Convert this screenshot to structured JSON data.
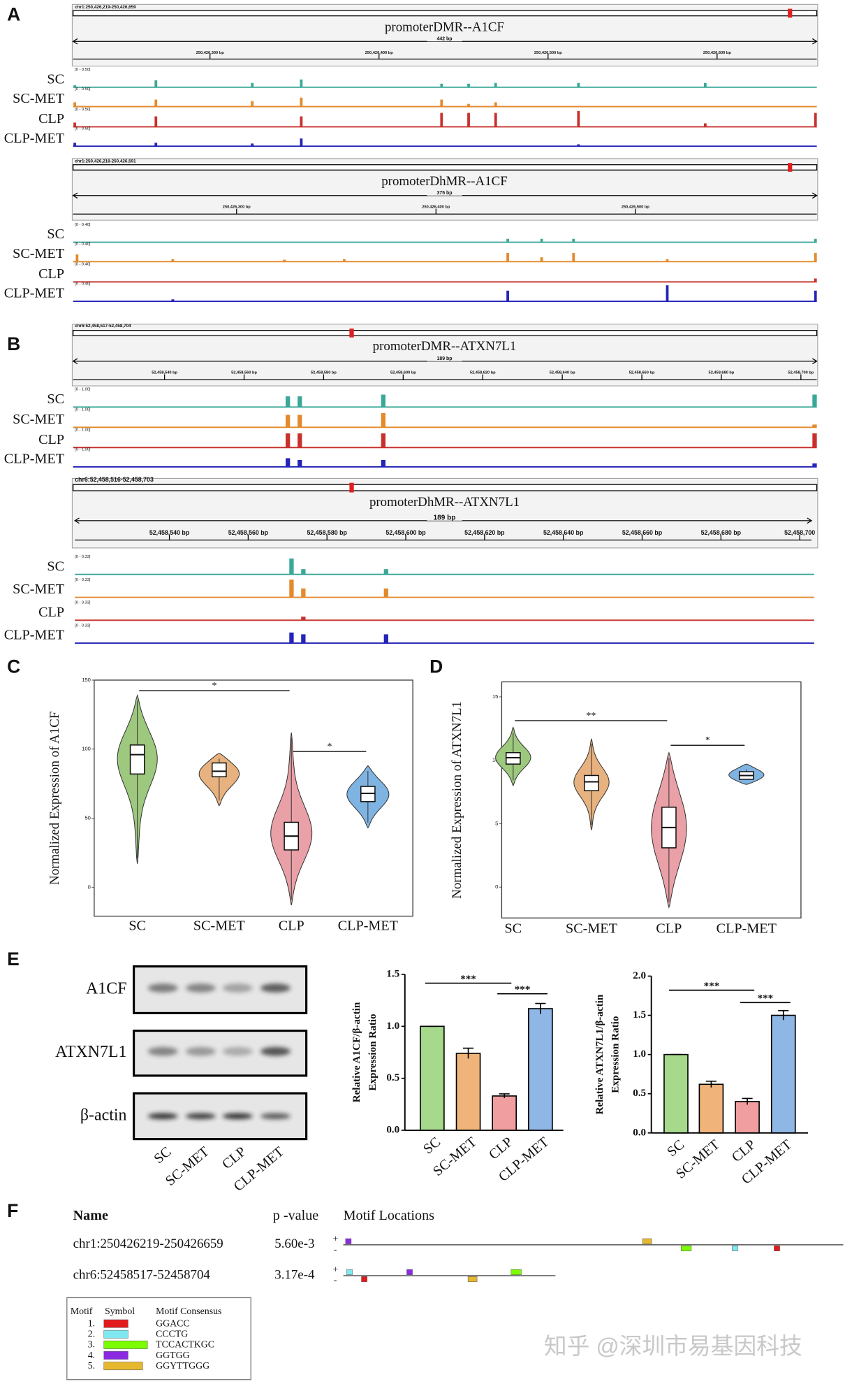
{
  "panel_labels": [
    "A",
    "B",
    "C",
    "D",
    "E",
    "F"
  ],
  "samples": [
    "SC",
    "SC-MET",
    "CLP",
    "CLP-MET"
  ],
  "sample_colors": [
    "#3aa898",
    "#e38a2c",
    "#c8302c",
    "#2424b8"
  ],
  "tracks": [
    {
      "locus": "chr1:250,426,219-250,426,659",
      "title": "promoterDMR--A1CF",
      "span": "442 bp",
      "xlim": [
        250426219,
        250426659
      ],
      "xticks": [
        {
          "value": 250426300,
          "label": "250,426,300 bp"
        },
        {
          "value": 250426400,
          "label": "250,426,400 bp"
        },
        {
          "value": 250426500,
          "label": "250,426,500 bp"
        },
        {
          "value": 250426600,
          "label": "250,426,600 bp"
        }
      ],
      "range": {
        "value": 0.5,
        "label": "[0 - 0.50]"
      },
      "peaks": [
        {
          "x": 250426220,
          "values": [
            0.05,
            0.11,
            0.11,
            0.09
          ]
        },
        {
          "x": 250426268,
          "values": [
            0.18,
            0.18,
            0.27,
            0.09
          ]
        },
        {
          "x": 250426325,
          "values": [
            0.11,
            0.14,
            0,
            0.07
          ]
        },
        {
          "x": 250426354,
          "values": [
            0.2,
            0.23,
            0.27,
            0.2
          ]
        },
        {
          "x": 250426437,
          "values": [
            0.09,
            0.18,
            0.36,
            0
          ]
        },
        {
          "x": 250426453,
          "values": [
            0.09,
            0.07,
            0.36,
            0
          ]
        },
        {
          "x": 250426469,
          "values": [
            0.11,
            0.11,
            0.36,
            0
          ]
        },
        {
          "x": 250426518,
          "values": [
            0.11,
            0,
            0.41,
            0.05
          ]
        },
        {
          "x": 250426593,
          "values": [
            0.11,
            0,
            0.09,
            0
          ]
        },
        {
          "x": 250426659,
          "values": [
            0,
            0,
            0.36,
            0
          ]
        }
      ]
    },
    {
      "locus": "chr1:250,426,218-250,426,591",
      "title": "promoterDhMR--A1CF",
      "span": "375 bp",
      "xlim": [
        250426218,
        250426591
      ],
      "xticks": [
        {
          "value": 250426300,
          "label": "250,426,300 bp"
        },
        {
          "value": 250426400,
          "label": "250,426,400 bp"
        },
        {
          "value": 250426500,
          "label": "250,426,500 bp"
        }
      ],
      "range": {
        "value": 0.4,
        "label": "[0 - 0.40]"
      },
      "peaks": [
        {
          "x": 250426220,
          "values": [
            0,
            0.15,
            0,
            0
          ]
        },
        {
          "x": 250426268,
          "values": [
            0,
            0.05,
            0,
            0.04
          ]
        },
        {
          "x": 250426324,
          "values": [
            0,
            0.04,
            0,
            0
          ]
        },
        {
          "x": 250426354,
          "values": [
            0,
            0.05,
            0,
            0
          ]
        },
        {
          "x": 250426436,
          "values": [
            0.07,
            0.18,
            0,
            0.22
          ]
        },
        {
          "x": 250426453,
          "values": [
            0.07,
            0.09,
            0,
            0
          ]
        },
        {
          "x": 250426469,
          "values": [
            0.07,
            0.18,
            0,
            0
          ]
        },
        {
          "x": 250426516,
          "values": [
            0,
            0.05,
            0,
            0.33
          ]
        },
        {
          "x": 250426591,
          "values": [
            0.07,
            0.18,
            0.07,
            0.22
          ]
        }
      ]
    },
    {
      "locus": "chr6:52,458,517-52,458,704",
      "title": "promoterDMR--ATXN7L1",
      "span": "189 bp",
      "xlim": [
        52458517,
        52458704
      ],
      "xticks": [
        {
          "value": 52458540,
          "label": "52,458,540 bp"
        },
        {
          "value": 52458560,
          "label": "52,458,560 bp"
        },
        {
          "value": 52458580,
          "label": "52,458,580 bp"
        },
        {
          "value": 52458600,
          "label": "52,458,600 bp"
        },
        {
          "value": 52458620,
          "label": "52,458,620 bp"
        },
        {
          "value": 52458640,
          "label": "52,458,640 bp"
        },
        {
          "value": 52458660,
          "label": "52,458,660 bp"
        },
        {
          "value": 52458680,
          "label": "52,458,680 bp"
        },
        {
          "value": 52458700,
          "label": "52,458,700 bp"
        }
      ],
      "range": {
        "value": 1,
        "label": "[0 - 1.00]"
      },
      "peaks": [
        {
          "x": 52458571,
          "values": [
            0.55,
            0.64,
            0.73,
            0.45
          ]
        },
        {
          "x": 52458574,
          "values": [
            0.55,
            0.64,
            0.73,
            0.36
          ]
        },
        {
          "x": 52458595,
          "values": [
            0.64,
            0.73,
            0.73,
            0.36
          ]
        },
        {
          "x": 52458704,
          "values": [
            0.64,
            0.14,
            0.73,
            0.18
          ]
        }
      ]
    },
    {
      "locus": "chr6:52,458,516-52,458,703",
      "title": "promoterDhMR--ATXN7L1",
      "span": "189 bp",
      "xlim": [
        52458516,
        52458703
      ],
      "xticks": [
        {
          "value": 52458540,
          "label": "52,458,540 bp"
        },
        {
          "value": 52458560,
          "label": "52,458,560 bp"
        },
        {
          "value": 52458580,
          "label": "52,458,580 bp"
        },
        {
          "value": 52458600,
          "label": "52,458,600 bp"
        },
        {
          "value": 52458620,
          "label": "52,458,620 bp"
        },
        {
          "value": 52458640,
          "label": "52,458,640 bp"
        },
        {
          "value": 52458660,
          "label": "52,458,660 bp"
        },
        {
          "value": 52458680,
          "label": "52,458,680 bp"
        },
        {
          "value": 52458700,
          "label": "52,458,700"
        }
      ],
      "range": {
        "value": 0.33,
        "label": "[0 - 0.33]"
      },
      "peaks": [
        {
          "x": 52458571,
          "values": [
            0.27,
            0.3,
            0,
            0.18
          ]
        },
        {
          "x": 52458574,
          "values": [
            0.09,
            0.15,
            0.06,
            0.15
          ]
        },
        {
          "x": 52458595,
          "values": [
            0.09,
            0.15,
            0,
            0.15
          ]
        }
      ]
    }
  ],
  "chart_data": [
    {
      "type": "violin",
      "ylabel": "Normalized Expression of A1CF",
      "categories": [
        "SC",
        "SC-MET",
        "CLP",
        "CLP-MET"
      ],
      "min": [
        17,
        59,
        -13,
        43
      ],
      "q1": [
        82,
        80,
        27,
        62
      ],
      "median": [
        96,
        84,
        37,
        68
      ],
      "q3": [
        103,
        90,
        47,
        73
      ],
      "max": [
        139,
        97,
        112,
        88
      ],
      "colors": [
        "#9dc87e",
        "#e7b27f",
        "#e9a0a6",
        "#7fb3e2"
      ],
      "ylim": [
        -21,
        150
      ],
      "yticks": [
        0,
        50,
        100,
        150
      ],
      "significance": [
        {
          "label": "*",
          "from": 0,
          "to": 2
        },
        {
          "label": "*",
          "from": 2,
          "to": 3
        }
      ]
    },
    {
      "type": "violin",
      "ylabel": "Normalized Expression of ATXN7L1",
      "categories": [
        "SC",
        "SC-MET",
        "CLP",
        "CLP-MET"
      ],
      "min": [
        8,
        4.5,
        -1.6,
        8.1
      ],
      "q1": [
        9.7,
        7.6,
        3.1,
        8.5
      ],
      "median": [
        10.2,
        8.3,
        4.7,
        8.8
      ],
      "q3": [
        10.6,
        8.8,
        6.3,
        9.1
      ],
      "max": [
        12.6,
        11.7,
        10.6,
        9.7
      ],
      "colors": [
        "#9dc87e",
        "#e7b27f",
        "#e9a0a6",
        "#7fb3e2"
      ],
      "ylim": [
        -2.43,
        16.18
      ],
      "yticks": [
        0,
        5,
        10,
        15
      ],
      "significance": [
        {
          "label": "**",
          "from": 0,
          "to": 2
        },
        {
          "label": "*",
          "from": 2,
          "to": 3
        }
      ]
    },
    {
      "type": "bar",
      "ylabel": [
        "Relative A1CF/β-actin",
        "Expression Ratio"
      ],
      "categories": [
        "SC",
        "SC-MET",
        "CLP",
        "CLP-MET"
      ],
      "values": [
        1.0,
        0.74,
        0.33,
        1.17
      ],
      "errors": [
        0,
        0.05,
        0.02,
        0.05
      ],
      "colors": [
        "#a6d98b",
        "#f0b47a",
        "#f09ea0",
        "#8fb7e6"
      ],
      "ylim": [
        0,
        1.5
      ],
      "yticks": [
        {
          "value": 0,
          "label": "0.0"
        },
        {
          "value": 0.5,
          "label": "0.5"
        },
        {
          "value": 1,
          "label": "1.0"
        },
        {
          "value": 1.5,
          "label": "1.5"
        }
      ],
      "significance": [
        {
          "label": "***",
          "from": 0,
          "to": 2
        },
        {
          "label": "***",
          "from": 2,
          "to": 3
        }
      ]
    },
    {
      "type": "bar",
      "ylabel": [
        "Relative ATXN7L1/β-actin",
        "Expression Ratio"
      ],
      "categories": [
        "SC",
        "SC-MET",
        "CLP",
        "CLP-MET"
      ],
      "values": [
        1.0,
        0.62,
        0.4,
        1.5
      ],
      "errors": [
        0,
        0.04,
        0.04,
        0.06
      ],
      "colors": [
        "#a6d98b",
        "#f0b47a",
        "#f09ea0",
        "#8fb7e6"
      ],
      "ylim": [
        0,
        2
      ],
      "yticks": [
        {
          "value": 0,
          "label": "0.0"
        },
        {
          "value": 0.5,
          "label": "0.5"
        },
        {
          "value": 1,
          "label": "1.0"
        },
        {
          "value": 1.5,
          "label": "1.5"
        },
        {
          "value": 2,
          "label": "2.0"
        }
      ],
      "significance": [
        {
          "label": "***",
          "from": 0,
          "to": 2
        },
        {
          "label": "***",
          "from": 2,
          "to": 3
        }
      ]
    }
  ],
  "blot": {
    "proteins": [
      "A1CF",
      "ATXN7L1",
      "β-actin"
    ],
    "lanes": [
      "SC",
      "SC-MET",
      "CLP",
      "CLP-MET"
    ]
  },
  "motifs": {
    "headers": [
      "Name",
      "p -value",
      "Motif Locations"
    ],
    "strands": [
      "+",
      "-"
    ],
    "sequences": [
      {
        "name": "chr1:250426219-250426659",
        "p_value": "5.60e-3",
        "sites": [
          {
            "motif": 4,
            "strand": "+",
            "start": 2
          },
          {
            "motif": 5,
            "strand": "+",
            "start": 264
          },
          {
            "motif": 3,
            "strand": "-",
            "start": 298
          },
          {
            "motif": 2,
            "strand": "-",
            "start": 343
          },
          {
            "motif": 1,
            "strand": "-",
            "start": 380
          }
        ]
      },
      {
        "name": "chr6:52458517-52458704",
        "p_value": "3.17e-4",
        "sites": [
          {
            "motif": 2,
            "strand": "+",
            "start": 3
          },
          {
            "motif": 1,
            "strand": "-",
            "start": 16
          },
          {
            "motif": 4,
            "strand": "+",
            "start": 56
          },
          {
            "motif": 5,
            "strand": "-",
            "start": 110
          },
          {
            "motif": 3,
            "strand": "+",
            "start": 148
          }
        ]
      }
    ]
  },
  "motif_legend": {
    "headers": [
      "Motif",
      "Symbol",
      "Motif Consensus"
    ],
    "items": [
      {
        "number": "1.",
        "color": "#e31a1c",
        "consensus": "GGACC"
      },
      {
        "number": "2.",
        "color": "#7fe8ef",
        "consensus": "CCCTG"
      },
      {
        "number": "3.",
        "color": "#7cfc00",
        "consensus": "TCCACTKGC"
      },
      {
        "number": "4.",
        "color": "#8a2be2",
        "consensus": "GGTGG"
      },
      {
        "number": "5.",
        "color": "#e6b830",
        "consensus": "GGYTTGGG"
      }
    ]
  },
  "watermark": "知乎 @深圳市易基因科技"
}
